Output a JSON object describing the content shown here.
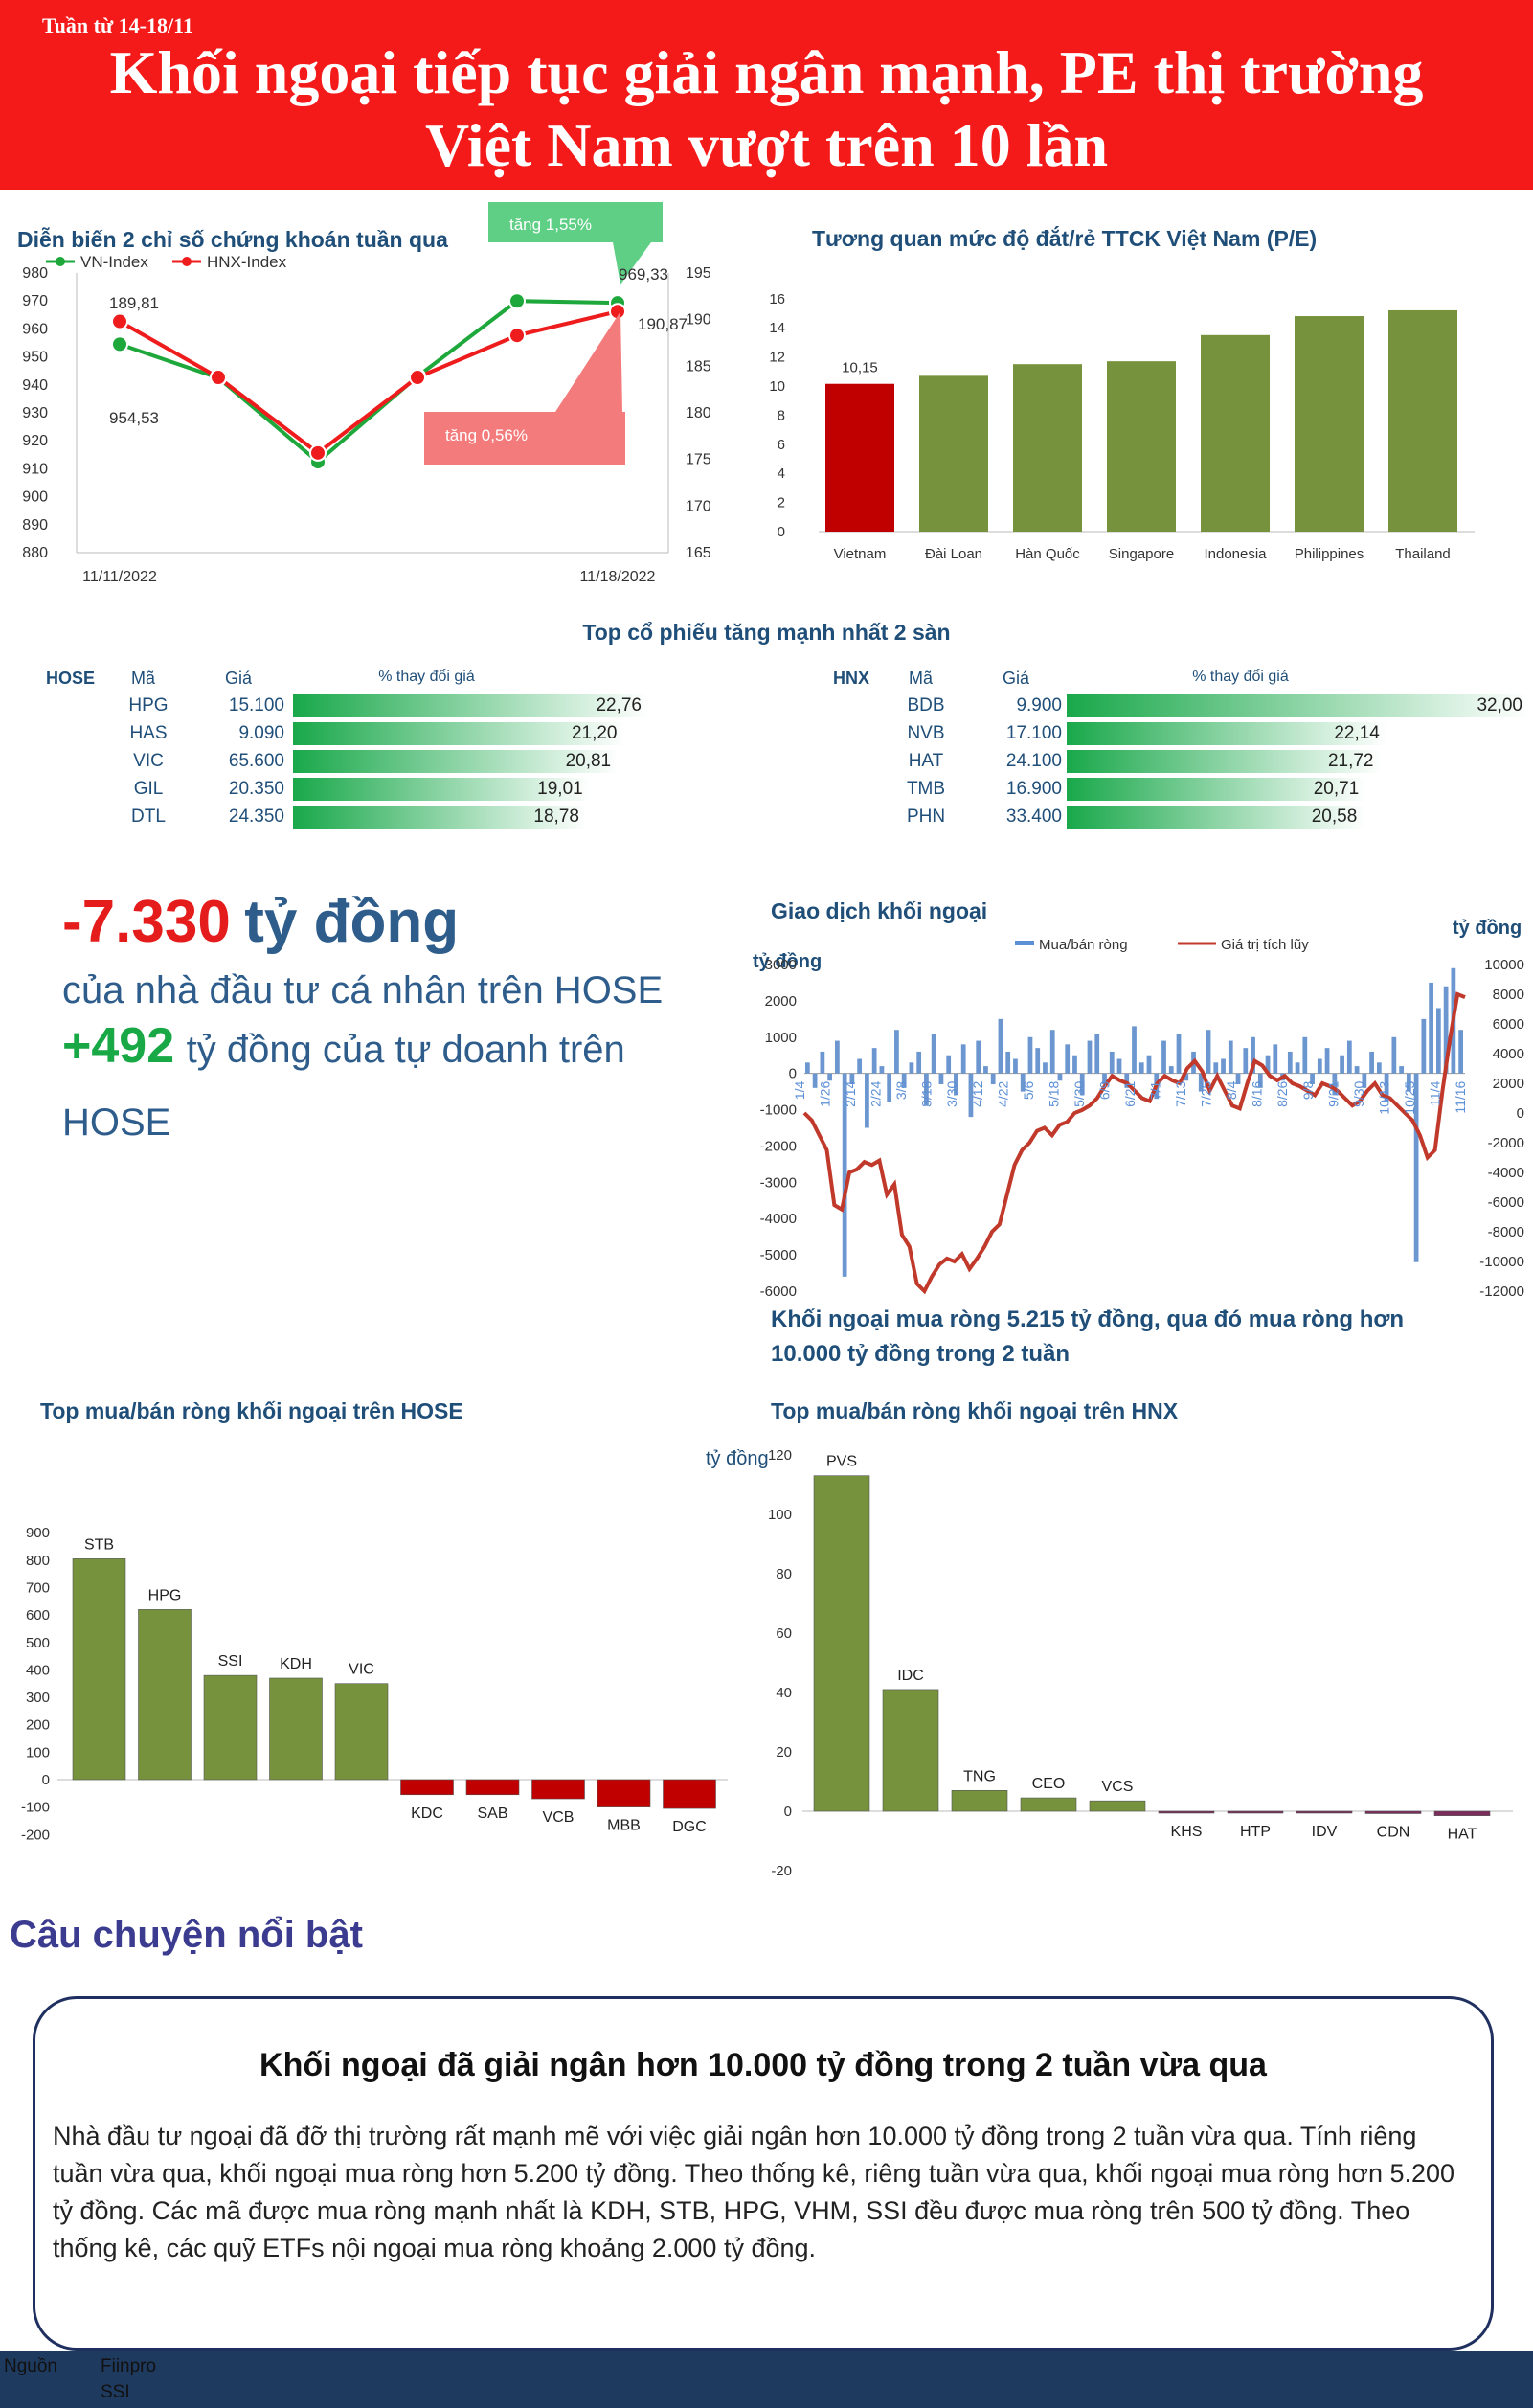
{
  "header": {
    "week": "Tuần từ 14-18/11",
    "title_line1": "Khối ngoại tiếp tục giải ngân mạnh, PE thị trường",
    "title_line2": "Việt Nam vượt trên 10 lần"
  },
  "index_chart": {
    "title": "Diễn biến 2 chỉ số chứng khoán tuần qua",
    "legend": [
      "VN-Index",
      "HNX-Index"
    ],
    "colors": {
      "vn": "#1ea83c",
      "hnx": "#ee1c1c"
    },
    "x_labels": [
      "11/11/2022",
      "11/18/2022"
    ],
    "left_ticks": [
      "980",
      "970",
      "960",
      "950",
      "940",
      "930",
      "920",
      "910",
      "900",
      "890",
      "880"
    ],
    "right_ticks": [
      "195",
      "190",
      "185",
      "180",
      "175",
      "170",
      "165"
    ],
    "vn_values": [
      954.53,
      942.5,
      912.5,
      943,
      970,
      969.33
    ],
    "hnx_values": [
      189.81,
      183.8,
      175.7,
      183.8,
      188.3,
      190.87
    ],
    "labels": {
      "vn_first": "954,53",
      "vn_last": "969,33",
      "hnx_first": "189,81",
      "hnx_last": "190,87"
    },
    "callout_up": "tăng 1,55%",
    "callout_hnx": "tăng 0,56%"
  },
  "pe_chart": {
    "title": "Tương quan mức độ đắt/rẻ TTCK Việt Nam (P/E)",
    "categories": [
      "Vietnam",
      "Đài Loan",
      "Hàn Quốc",
      "Singapore",
      "Indonesia",
      "Philippines",
      "Thailand"
    ],
    "values": [
      10.15,
      10.7,
      11.5,
      11.7,
      13.5,
      14.8,
      15.2
    ],
    "label_vietnam": "10,15",
    "ticks": [
      "16",
      "14",
      "12",
      "10",
      "8",
      "6",
      "4",
      "2",
      "0"
    ],
    "colors": {
      "highlight": "#c00000",
      "bar": "#76923c"
    }
  },
  "top_gainers": {
    "title": "Top cổ phiếu tăng mạnh nhất 2 sàn",
    "headers": {
      "ma": "Mã",
      "gia": "Giá",
      "pct": "% thay đổi giá"
    },
    "hose": {
      "exchange": "HOSE",
      "rows": [
        {
          "ma": "HPG",
          "gia": "15.100",
          "pct": "22,76",
          "value": 22.76
        },
        {
          "ma": "HAS",
          "gia": "9.090",
          "pct": "21,20",
          "value": 21.2
        },
        {
          "ma": "VIC",
          "gia": "65.600",
          "pct": "20,81",
          "value": 20.81
        },
        {
          "ma": "GIL",
          "gia": "20.350",
          "pct": "19,01",
          "value": 19.01
        },
        {
          "ma": "DTL",
          "gia": "24.350",
          "pct": "18,78",
          "value": 18.78
        }
      ]
    },
    "hnx": {
      "exchange": "HNX",
      "rows": [
        {
          "ma": "BDB",
          "gia": "9.900",
          "pct": "32,00",
          "value": 32.0
        },
        {
          "ma": "NVB",
          "gia": "17.100",
          "pct": "22,14",
          "value": 22.14
        },
        {
          "ma": "HAT",
          "gia": "24.100",
          "pct": "21,72",
          "value": 21.72
        },
        {
          "ma": "TMB",
          "gia": "16.900",
          "pct": "20,71",
          "value": 20.71
        },
        {
          "ma": "PHN",
          "gia": "33.400",
          "pct": "20,58",
          "value": 20.58
        }
      ]
    }
  },
  "highlights": {
    "value1": "-7.330",
    "unit1": "tỷ đồng",
    "text1": "của nhà đầu tư cá nhân trên HOSE",
    "value2": "+492",
    "text2a": "tỷ đồng của tự doanh trên",
    "text2b": "HOSE"
  },
  "foreign_chart": {
    "title": "Giao dịch khối ngoại",
    "legend": [
      "Mua/bán ròng",
      "Giá trị tích lũy"
    ],
    "unit_left": "tỷ đồng",
    "unit_right": "tỷ đồng",
    "left_ticks": [
      "3000",
      "2000",
      "1000",
      "0",
      "-1000",
      "-2000",
      "-3000",
      "-4000",
      "-5000",
      "-6000"
    ],
    "right_ticks": [
      "10000",
      "8000",
      "6000",
      "4000",
      "2000",
      "0",
      "-2000",
      "-4000",
      "-6000",
      "-8000",
      "-10000",
      "-12000"
    ],
    "x_labels": [
      "1/4",
      "1/26",
      "2/14",
      "2/24",
      "3/8",
      "3/18",
      "3/30",
      "4/12",
      "4/22",
      "5/6",
      "5/18",
      "5/30",
      "6/9",
      "6/21",
      "7/1",
      "7/13",
      "7/25",
      "8/4",
      "8/16",
      "8/26",
      "9/8",
      "9/21",
      "9/30",
      "10/13",
      "10/25",
      "11/4",
      "11/16"
    ],
    "cumulative": [
      0,
      -500,
      -1500,
      -2500,
      -6200,
      -6500,
      -4000,
      -3800,
      -3300,
      -3500,
      -3200,
      -5500,
      -4800,
      -8200,
      -9000,
      -11500,
      -12000,
      -11000,
      -10200,
      -9800,
      -10000,
      -9500,
      -10500,
      -9800,
      -9000,
      -8000,
      -7500,
      -5500,
      -3500,
      -2500,
      -2000,
      -1200,
      -1000,
      -1500,
      -800,
      -600,
      0,
      200,
      500,
      1000,
      1800,
      2500,
      2200,
      2000,
      1500,
      1000,
      800,
      2000,
      2500,
      2200,
      2000,
      3000,
      3500,
      2800,
      1500,
      2500,
      1500,
      500,
      300,
      2000,
      3500,
      3200,
      2500,
      2200,
      2500,
      2000,
      1800,
      1500,
      1200,
      2000,
      1800,
      1500,
      1000,
      500,
      800,
      1500,
      2000,
      1200,
      1000,
      500,
      0,
      -500,
      -1500,
      -3000,
      -2500,
      1500,
      5000,
      8000,
      7800
    ],
    "net": [
      300,
      -400,
      600,
      -200,
      900,
      -5600,
      -300,
      400,
      -1500,
      700,
      200,
      -800,
      1200,
      -400,
      300,
      600,
      -900,
      1100,
      -300,
      500,
      -600,
      800,
      -1200,
      900,
      200,
      -300,
      1500,
      600,
      400,
      -500,
      1000,
      700,
      300,
      1200,
      -200,
      800,
      500,
      -600,
      900,
      1100,
      -300,
      600,
      400,
      -400,
      1300,
      300,
      500,
      -700,
      900,
      200,
      1100,
      -200,
      600,
      -500,
      1200,
      300,
      400,
      900,
      -300,
      700,
      1000,
      -400,
      500,
      800,
      -200,
      600,
      300,
      1000,
      -300,
      400,
      700,
      -600,
      500,
      900,
      200,
      -400,
      600,
      300,
      -800,
      1000,
      200,
      -500,
      -5200,
      1500,
      2500,
      1800,
      2400,
      2900,
      1200
    ]
  },
  "foreign_note": {
    "line1": "Khối ngoại mua ròng 5.215 tỷ đồng, qua đó mua ròng hơn",
    "line2": "10.000 tỷ đồng trong 2 tuần"
  },
  "hose_net": {
    "title": "Top mua/bán ròng khối ngoại trên HOSE",
    "categories": [
      "STB",
      "HPG",
      "SSI",
      "KDH",
      "VIC",
      "KDC",
      "SAB",
      "VCB",
      "MBB",
      "DGC"
    ],
    "values": [
      805,
      620,
      380,
      370,
      350,
      -55,
      -55,
      -70,
      -100,
      -105
    ],
    "ticks": [
      "900",
      "800",
      "700",
      "600",
      "500",
      "400",
      "300",
      "200",
      "100",
      "0",
      "-100",
      "-200"
    ],
    "colors": {
      "pos": "#76923c",
      "neg": "#c00000"
    }
  },
  "hnx_net": {
    "title": "Top mua/bán ròng khối ngoại trên HNX",
    "unit": "tỷ đồng",
    "categories": [
      "PVS",
      "IDC",
      "TNG",
      "CEO",
      "VCS",
      "KHS",
      "HTP",
      "IDV",
      "CDN",
      "HAT"
    ],
    "values": [
      113,
      41,
      7,
      4.5,
      3.5,
      -0.5,
      -0.5,
      -0.6,
      -0.8,
      -1.5
    ],
    "ticks": [
      "120",
      "100",
      "80",
      "60",
      "40",
      "20",
      "0",
      "-20"
    ],
    "colors": {
      "pos": "#76923c",
      "neg": "#7b2c5a"
    }
  },
  "story": {
    "heading": "Câu chuyện nổi bật",
    "title": "Khối ngoại đã giải ngân hơn 10.000 tỷ đồng trong 2 tuần vừa qua",
    "body": "Nhà đầu tư ngoại đã đỡ thị trường rất mạnh mẽ với việc giải ngân hơn 10.000 tỷ đồng trong 2 tuần vừa qua. Tính riêng tuần vừa qua, khối ngoại mua ròng hơn 5.200 tỷ đồng. Theo thống kê, riêng tuần vừa qua, khối ngoại mua ròng hơn 5.200 tỷ đồng. Các mã được mua ròng mạnh nhất là KDH, STB, HPG, VHM, SSI đều được mua ròng trên 500 tỷ đồng. Theo thống kê, các quỹ ETFs nội ngoại mua ròng khoảng 2.000 tỷ đồng."
  },
  "footer": {
    "label": "Nguồn",
    "source1": "Fiinpro",
    "source2": "SSI"
  }
}
